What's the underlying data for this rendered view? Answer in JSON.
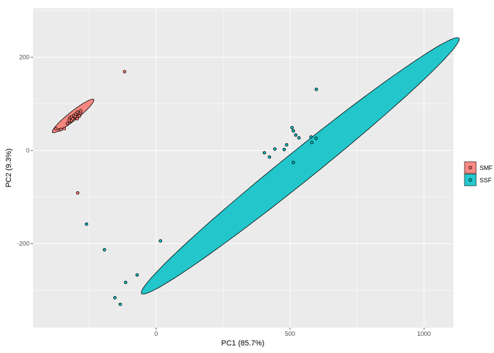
{
  "chart_data": {
    "type": "scatter",
    "title": "",
    "xlabel": "PC1 (85.7%)",
    "ylabel": "PC2 (9.3%)",
    "xlim": [
      -460,
      1110
    ],
    "ylim": [
      -380,
      305
    ],
    "x_ticks": [
      0,
      500,
      1000
    ],
    "y_ticks": [
      -200,
      0,
      200
    ],
    "x_tick_labels": [
      "0",
      "500",
      "1000"
    ],
    "y_tick_labels": [
      "-200",
      "0",
      "200"
    ],
    "grid": true,
    "legend_position": "right",
    "series": [
      {
        "name": "SMF",
        "color": "#f8766d",
        "ellipse": {
          "center": [
            -310,
            74
          ],
          "semi_major": 85,
          "semi_minor": 11,
          "angle_deg": 24
        },
        "points": [
          [
            -375,
            47
          ],
          [
            -362,
            44
          ],
          [
            -355,
            45
          ],
          [
            -343,
            47
          ],
          [
            -332,
            58
          ],
          [
            -322,
            62
          ],
          [
            -315,
            64
          ],
          [
            -308,
            66
          ],
          [
            -305,
            70
          ],
          [
            -300,
            72
          ],
          [
            -296,
            74
          ],
          [
            -292,
            76
          ],
          [
            -288,
            78
          ],
          [
            -283,
            80
          ],
          [
            -282,
            85
          ],
          [
            -322,
            70
          ],
          [
            -316,
            72
          ],
          [
            -308,
            75
          ],
          [
            -300,
            78
          ],
          [
            -294,
            82
          ],
          [
            -292,
            72
          ],
          [
            -286,
            74
          ],
          [
            -325,
            65
          ],
          [
            -295,
            68
          ],
          [
            -302,
            73
          ],
          [
            -312,
            68
          ],
          [
            -118,
            169
          ],
          [
            -293,
            -91
          ]
        ]
      },
      {
        "name": "SSF",
        "color": "#00bfc4",
        "ellipse": {
          "center": [
            538,
            -33
          ],
          "semi_major": 653,
          "semi_minor": 38,
          "angle_deg": 24.7
        },
        "points": [
          [
            598,
            131
          ],
          [
            507,
            49
          ],
          [
            512,
            42
          ],
          [
            521,
            33
          ],
          [
            533,
            27
          ],
          [
            578,
            29
          ],
          [
            597,
            26
          ],
          [
            581,
            17
          ],
          [
            487,
            12
          ],
          [
            478,
            2
          ],
          [
            443,
            3
          ],
          [
            404,
            -5
          ],
          [
            423,
            -14
          ],
          [
            512,
            -26
          ],
          [
            -260,
            -158
          ],
          [
            -193,
            -213
          ],
          [
            16,
            -194
          ],
          [
            -71,
            -267
          ],
          [
            -114,
            -283
          ],
          [
            -154,
            -316
          ],
          [
            -134,
            -330
          ]
        ]
      }
    ]
  }
}
